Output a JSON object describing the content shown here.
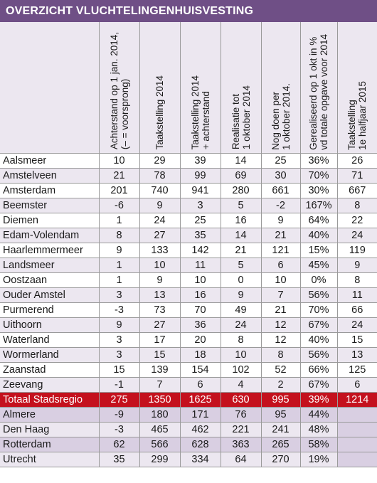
{
  "title": "OVERZICHT VLUCHTELINGENHUISVESTING",
  "columns": [
    "Achterstand op 1 jan. 2014,\n(– = voorsprong)",
    "Taakstelling 2014",
    "Taakstelling 2014\n+ achterstand",
    "Realisatie tot\n1 oktober 2014",
    "Nog doen per\n1 oktober 2014.",
    "Gerealiseerd op 1 okt in %\nvd totale opgave voor 2014",
    "Taakstelling\n1e halfjaar 2015"
  ],
  "rows": [
    {
      "name": "Aalsmeer",
      "values": [
        "10",
        "29",
        "39",
        "14",
        "25",
        "36%",
        "26"
      ]
    },
    {
      "name": "Amstelveen",
      "values": [
        "21",
        "78",
        "99",
        "69",
        "30",
        "70%",
        "71"
      ]
    },
    {
      "name": "Amsterdam",
      "values": [
        "201",
        "740",
        "941",
        "280",
        "661",
        "30%",
        "667"
      ]
    },
    {
      "name": "Beemster",
      "values": [
        "-6",
        "9",
        "3",
        "5",
        "-2",
        "167%",
        "8"
      ]
    },
    {
      "name": "Diemen",
      "values": [
        "1",
        "24",
        "25",
        "16",
        "9",
        "64%",
        "22"
      ]
    },
    {
      "name": "Edam-Volendam",
      "values": [
        "8",
        "27",
        "35",
        "14",
        "21",
        "40%",
        "24"
      ]
    },
    {
      "name": "Haarlemmermeer",
      "values": [
        "9",
        "133",
        "142",
        "21",
        "121",
        "15%",
        "119"
      ]
    },
    {
      "name": "Landsmeer",
      "values": [
        "1",
        "10",
        "11",
        "5",
        "6",
        "45%",
        "9"
      ]
    },
    {
      "name": "Oostzaan",
      "values": [
        "1",
        "9",
        "10",
        "0",
        "10",
        "0%",
        "8"
      ]
    },
    {
      "name": "Ouder Amstel",
      "values": [
        "3",
        "13",
        "16",
        "9",
        "7",
        "56%",
        "11"
      ]
    },
    {
      "name": "Purmerend",
      "values": [
        "-3",
        "73",
        "70",
        "49",
        "21",
        "70%",
        "66"
      ]
    },
    {
      "name": "Uithoorn",
      "values": [
        "9",
        "27",
        "36",
        "24",
        "12",
        "67%",
        "24"
      ]
    },
    {
      "name": "Waterland",
      "values": [
        "3",
        "17",
        "20",
        "8",
        "12",
        "40%",
        "15"
      ]
    },
    {
      "name": "Wormerland",
      "values": [
        "3",
        "15",
        "18",
        "10",
        "8",
        "56%",
        "13"
      ]
    },
    {
      "name": "Zaanstad",
      "values": [
        "15",
        "139",
        "154",
        "102",
        "52",
        "66%",
        "125"
      ]
    },
    {
      "name": "Zeevang",
      "values": [
        "-1",
        "7",
        "6",
        "4",
        "2",
        "67%",
        "6"
      ]
    }
  ],
  "total": {
    "name": "Totaal Stadsregio",
    "values": [
      "275",
      "1350",
      "1625",
      "630",
      "995",
      "39%",
      "1214"
    ]
  },
  "comparison": [
    {
      "name": "Almere",
      "values": [
        "-9",
        "180",
        "171",
        "76",
        "95",
        "44%",
        ""
      ]
    },
    {
      "name": "Den Haag",
      "values": [
        "-3",
        "465",
        "462",
        "221",
        "241",
        "48%",
        ""
      ]
    },
    {
      "name": "Rotterdam",
      "values": [
        "62",
        "566",
        "628",
        "363",
        "265",
        "58%",
        ""
      ]
    },
    {
      "name": "Utrecht",
      "values": [
        "35",
        "299",
        "334",
        "64",
        "270",
        "19%",
        ""
      ]
    }
  ],
  "colors": {
    "title_bg": "#6f4f86",
    "total_bg": "#c4111d",
    "alt_bg": "#ece7f0",
    "cmp_bg": "#d9cfe2"
  }
}
